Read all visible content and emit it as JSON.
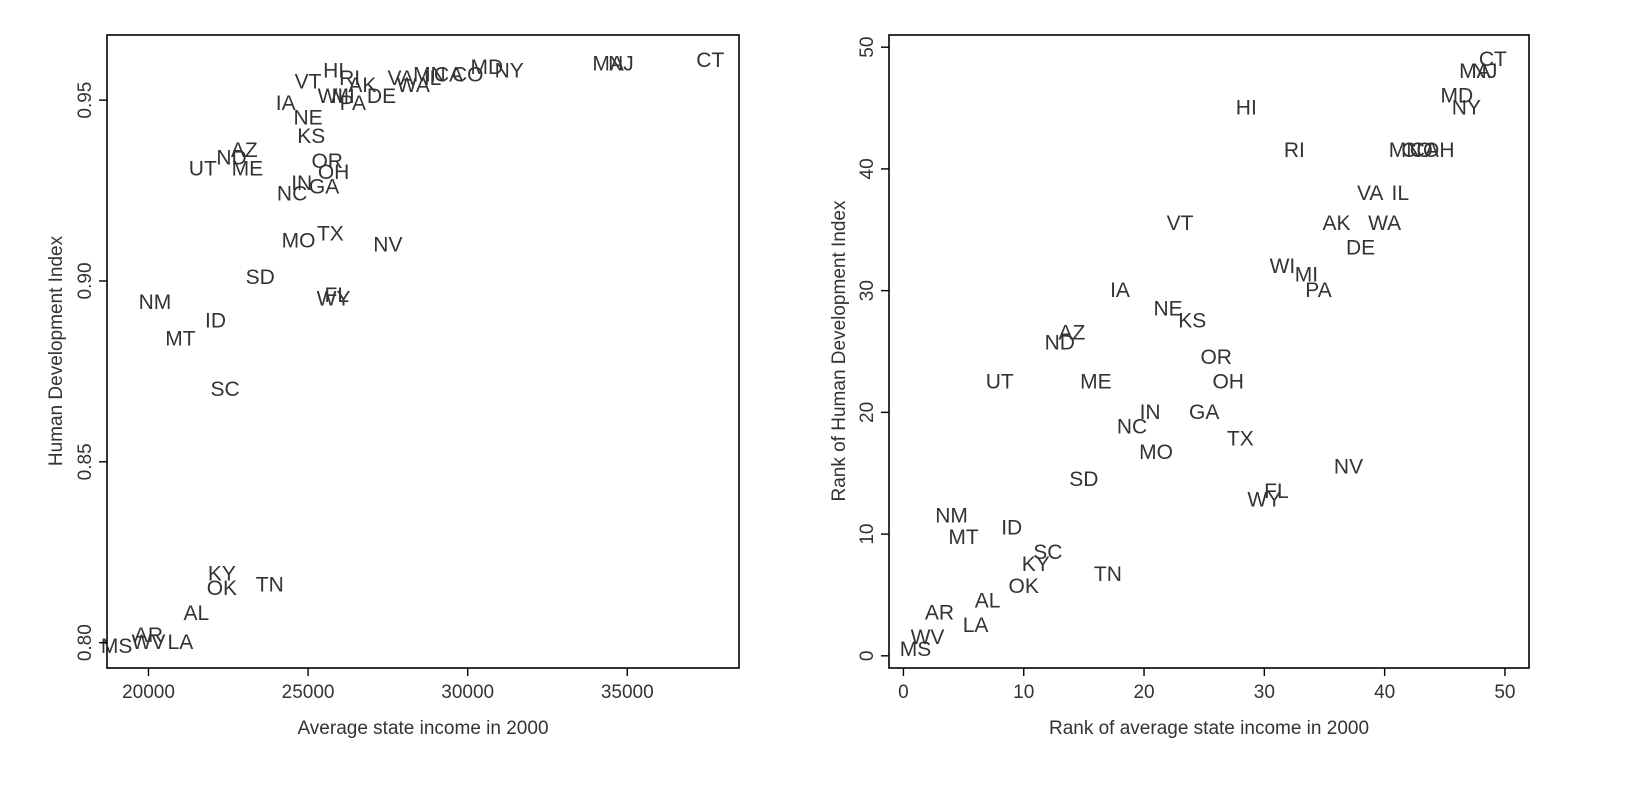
{
  "chart_data": [
    {
      "type": "scatter",
      "title": "",
      "xlabel": "Average state income in 2000",
      "ylabel": "Human Development Index",
      "xlim": [
        18700,
        38500
      ],
      "ylim": [
        0.793,
        0.968
      ],
      "xticks": [
        20000,
        25000,
        30000,
        35000
      ],
      "xtick_labels": [
        "20000",
        "25000",
        "30000",
        "35000"
      ],
      "yticks": [
        0.8,
        0.85,
        0.9,
        0.95
      ],
      "ytick_labels": [
        "0.80",
        "0.85",
        "0.90",
        "0.95"
      ],
      "marker": "state-abbreviation-text",
      "points": [
        {
          "label": "CT",
          "x": 37600,
          "y": 0.961
        },
        {
          "label": "MA",
          "x": 34400,
          "y": 0.96
        },
        {
          "label": "NJ",
          "x": 34800,
          "y": 0.96
        },
        {
          "label": "NY",
          "x": 31300,
          "y": 0.958
        },
        {
          "label": "MD",
          "x": 30600,
          "y": 0.959
        },
        {
          "label": "MN",
          "x": 28800,
          "y": 0.957
        },
        {
          "label": "CA",
          "x": 29400,
          "y": 0.957
        },
        {
          "label": "CO",
          "x": 30000,
          "y": 0.957
        },
        {
          "label": "VA",
          "x": 27900,
          "y": 0.956
        },
        {
          "label": "WA",
          "x": 28300,
          "y": 0.954
        },
        {
          "label": "IL",
          "x": 28900,
          "y": 0.956
        },
        {
          "label": "DE",
          "x": 27300,
          "y": 0.951
        },
        {
          "label": "AK",
          "x": 26700,
          "y": 0.954
        },
        {
          "label": "HI",
          "x": 25800,
          "y": 0.958
        },
        {
          "label": "RI",
          "x": 26300,
          "y": 0.956
        },
        {
          "label": "VT",
          "x": 25000,
          "y": 0.955
        },
        {
          "label": "WI",
          "x": 25700,
          "y": 0.951
        },
        {
          "label": "MI",
          "x": 26100,
          "y": 0.951
        },
        {
          "label": "PA",
          "x": 26400,
          "y": 0.949
        },
        {
          "label": "IA",
          "x": 24300,
          "y": 0.949
        },
        {
          "label": "NE",
          "x": 25000,
          "y": 0.945
        },
        {
          "label": "KS",
          "x": 25100,
          "y": 0.94
        },
        {
          "label": "AZ",
          "x": 23000,
          "y": 0.936
        },
        {
          "label": "ND",
          "x": 22600,
          "y": 0.934
        },
        {
          "label": "UT",
          "x": 21700,
          "y": 0.931
        },
        {
          "label": "ME",
          "x": 23100,
          "y": 0.931
        },
        {
          "label": "OR",
          "x": 25600,
          "y": 0.933
        },
        {
          "label": "OH",
          "x": 25800,
          "y": 0.93
        },
        {
          "label": "IN",
          "x": 24800,
          "y": 0.927
        },
        {
          "label": "GA",
          "x": 25500,
          "y": 0.926
        },
        {
          "label": "NC",
          "x": 24500,
          "y": 0.924
        },
        {
          "label": "MO",
          "x": 24700,
          "y": 0.911
        },
        {
          "label": "TX",
          "x": 25700,
          "y": 0.913
        },
        {
          "label": "NV",
          "x": 27500,
          "y": 0.91
        },
        {
          "label": "SD",
          "x": 23500,
          "y": 0.901
        },
        {
          "label": "FL",
          "x": 25900,
          "y": 0.896
        },
        {
          "label": "WY",
          "x": 25800,
          "y": 0.895
        },
        {
          "label": "NM",
          "x": 20200,
          "y": 0.894
        },
        {
          "label": "ID",
          "x": 22100,
          "y": 0.889
        },
        {
          "label": "MT",
          "x": 21000,
          "y": 0.884
        },
        {
          "label": "SC",
          "x": 22400,
          "y": 0.87
        },
        {
          "label": "KY",
          "x": 22300,
          "y": 0.819
        },
        {
          "label": "OK",
          "x": 22300,
          "y": 0.815
        },
        {
          "label": "TN",
          "x": 23800,
          "y": 0.816
        },
        {
          "label": "AL",
          "x": 21500,
          "y": 0.808
        },
        {
          "label": "AR",
          "x": 20000,
          "y": 0.802
        },
        {
          "label": "WV",
          "x": 20000,
          "y": 0.8
        },
        {
          "label": "LA",
          "x": 21000,
          "y": 0.8
        },
        {
          "label": "MS",
          "x": 19000,
          "y": 0.799
        }
      ]
    },
    {
      "type": "scatter",
      "title": "",
      "xlabel": "Rank of average state income in 2000",
      "ylabel": "Rank of Human Development Index",
      "xlim": [
        -1.2,
        52
      ],
      "ylim": [
        -1,
        51
      ],
      "xticks": [
        0,
        10,
        20,
        30,
        40,
        50
      ],
      "xtick_labels": [
        "0",
        "10",
        "20",
        "30",
        "40",
        "50"
      ],
      "yticks": [
        0,
        10,
        20,
        30,
        40,
        50
      ],
      "ytick_labels": [
        "0",
        "10",
        "20",
        "30",
        "40",
        "50"
      ],
      "marker": "state-abbreviation-text",
      "points": [
        {
          "label": "CT",
          "x": 49,
          "y": 49
        },
        {
          "label": "MA",
          "x": 47.5,
          "y": 48
        },
        {
          "label": "NJ",
          "x": 48.3,
          "y": 48
        },
        {
          "label": "MD",
          "x": 46,
          "y": 46
        },
        {
          "label": "NY",
          "x": 46.8,
          "y": 45
        },
        {
          "label": "HI",
          "x": 28.5,
          "y": 45
        },
        {
          "label": "RI",
          "x": 32.5,
          "y": 41.5
        },
        {
          "label": "MN",
          "x": 41.7,
          "y": 41.5
        },
        {
          "label": "CO",
          "x": 42.7,
          "y": 41.5
        },
        {
          "label": "CA",
          "x": 43.3,
          "y": 41.5
        },
        {
          "label": "OH",
          "x": 44.5,
          "y": 41.5
        },
        {
          "label": "VA",
          "x": 38.8,
          "y": 38
        },
        {
          "label": "IL",
          "x": 41.3,
          "y": 38
        },
        {
          "label": "VT",
          "x": 23,
          "y": 35.5
        },
        {
          "label": "AK",
          "x": 36,
          "y": 35.5
        },
        {
          "label": "WA",
          "x": 40,
          "y": 35.5
        },
        {
          "label": "DE",
          "x": 38,
          "y": 33.5
        },
        {
          "label": "WI",
          "x": 31.5,
          "y": 32
        },
        {
          "label": "MI",
          "x": 33.5,
          "y": 31.3
        },
        {
          "label": "PA",
          "x": 34.5,
          "y": 30
        },
        {
          "label": "IA",
          "x": 18,
          "y": 30
        },
        {
          "label": "NE",
          "x": 22,
          "y": 28.5
        },
        {
          "label": "KS",
          "x": 24,
          "y": 27.5
        },
        {
          "label": "AZ",
          "x": 14,
          "y": 26.5
        },
        {
          "label": "ND",
          "x": 13,
          "y": 25.7
        },
        {
          "label": "OR",
          "x": 26,
          "y": 24.5
        },
        {
          "label": "UT",
          "x": 8,
          "y": 22.5
        },
        {
          "label": "ME",
          "x": 16,
          "y": 22.5
        },
        {
          "label": "OH",
          "x": 27,
          "y": 22.5
        },
        {
          "label": "IN",
          "x": 20.5,
          "y": 20
        },
        {
          "label": "GA",
          "x": 25,
          "y": 20
        },
        {
          "label": "NC",
          "x": 19,
          "y": 18.8
        },
        {
          "label": "TX",
          "x": 28,
          "y": 17.8
        },
        {
          "label": "MO",
          "x": 21,
          "y": 16.7
        },
        {
          "label": "NV",
          "x": 37,
          "y": 15.5
        },
        {
          "label": "SD",
          "x": 15,
          "y": 14.5
        },
        {
          "label": "FL",
          "x": 31,
          "y": 13.5
        },
        {
          "label": "WY",
          "x": 30,
          "y": 12.8
        },
        {
          "label": "NM",
          "x": 4,
          "y": 11.5
        },
        {
          "label": "ID",
          "x": 9,
          "y": 10.5
        },
        {
          "label": "MT",
          "x": 5,
          "y": 9.7
        },
        {
          "label": "SC",
          "x": 12,
          "y": 8.5
        },
        {
          "label": "KY",
          "x": 11,
          "y": 7.5
        },
        {
          "label": "TN",
          "x": 17,
          "y": 6.7
        },
        {
          "label": "OK",
          "x": 10,
          "y": 5.7
        },
        {
          "label": "AL",
          "x": 7,
          "y": 4.5
        },
        {
          "label": "AR",
          "x": 3,
          "y": 3.5
        },
        {
          "label": "LA",
          "x": 6,
          "y": 2.5
        },
        {
          "label": "WV",
          "x": 2,
          "y": 1.5
        },
        {
          "label": "MS",
          "x": 1,
          "y": 0.5
        }
      ]
    }
  ],
  "colors": {
    "text": "#333333",
    "axis": "#000000",
    "background": "#ffffff"
  }
}
